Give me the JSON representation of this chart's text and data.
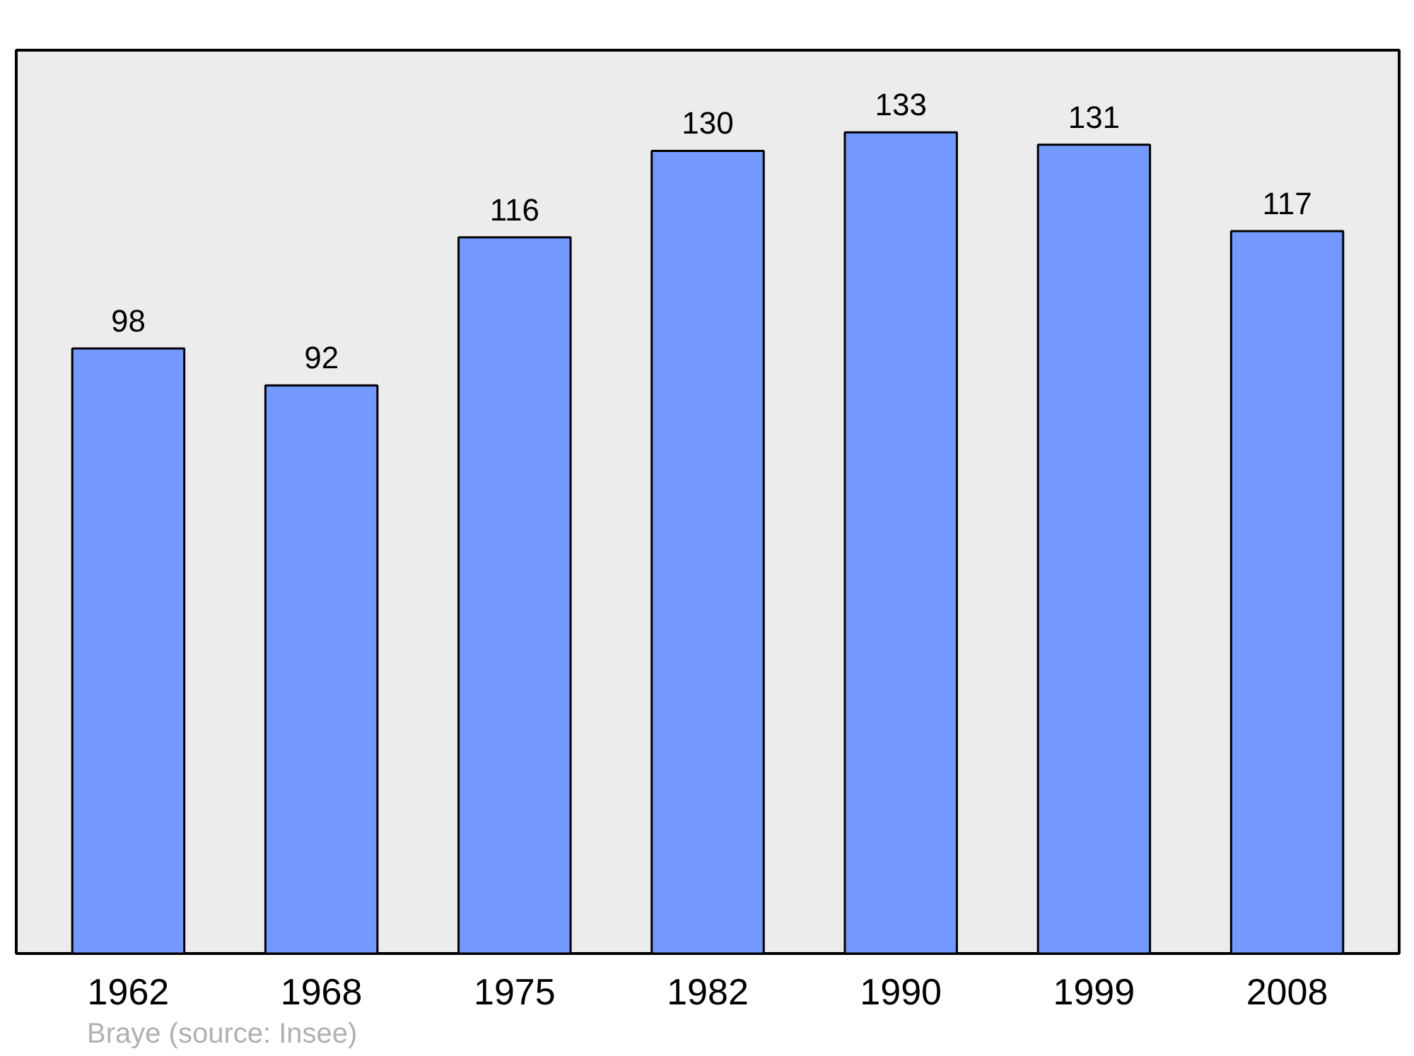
{
  "chart_data": {
    "type": "bar",
    "categories": [
      "1962",
      "1968",
      "1975",
      "1982",
      "1990",
      "1999",
      "2008"
    ],
    "values": [
      98,
      92,
      116,
      130,
      133,
      131,
      117
    ],
    "color": "#7399ff",
    "data_labels": true,
    "annotations": [
      "Braye    (source: Insee)"
    ]
  }
}
